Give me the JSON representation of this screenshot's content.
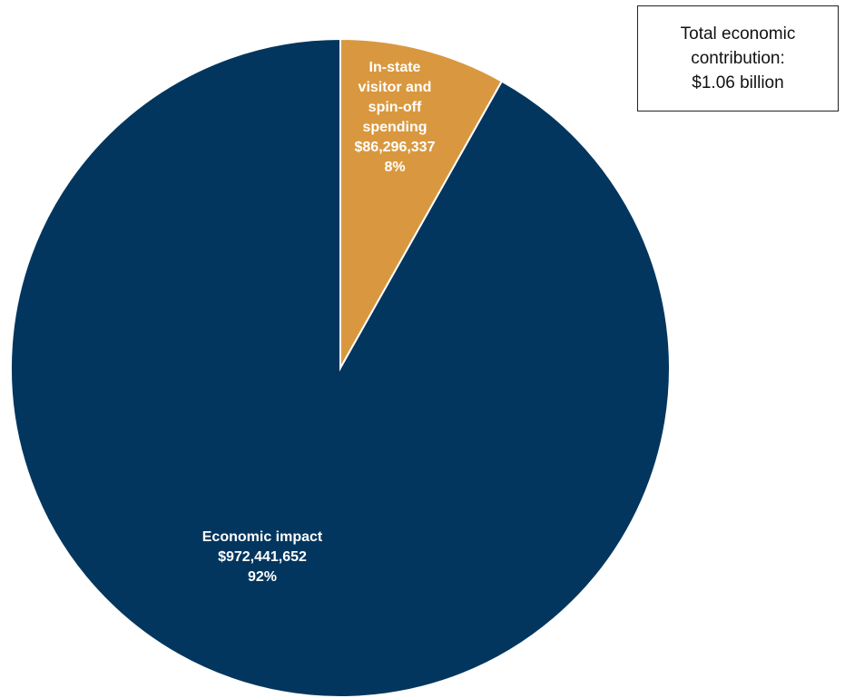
{
  "chart_data": {
    "type": "pie",
    "title": "",
    "slices": [
      {
        "label": "In-state visitor and spin-off spending",
        "label_lines": [
          "In-state",
          "visitor and",
          "spin-off",
          "spending"
        ],
        "value": 86296337,
        "value_text": "$86,296,337",
        "percent": 8,
        "percent_text": "8%",
        "color": "#D9983F"
      },
      {
        "label": "Economic impact",
        "label_lines": [
          "Economic impact"
        ],
        "value": 972441652,
        "value_text": "$972,441,652",
        "percent": 92,
        "percent_text": "92%",
        "color": "#02365E"
      }
    ],
    "start_angle": "12 o'clock",
    "direction": "clockwise"
  },
  "annotation": {
    "lines": [
      "Total economic",
      "contribution:",
      "$1.06 billion"
    ]
  }
}
